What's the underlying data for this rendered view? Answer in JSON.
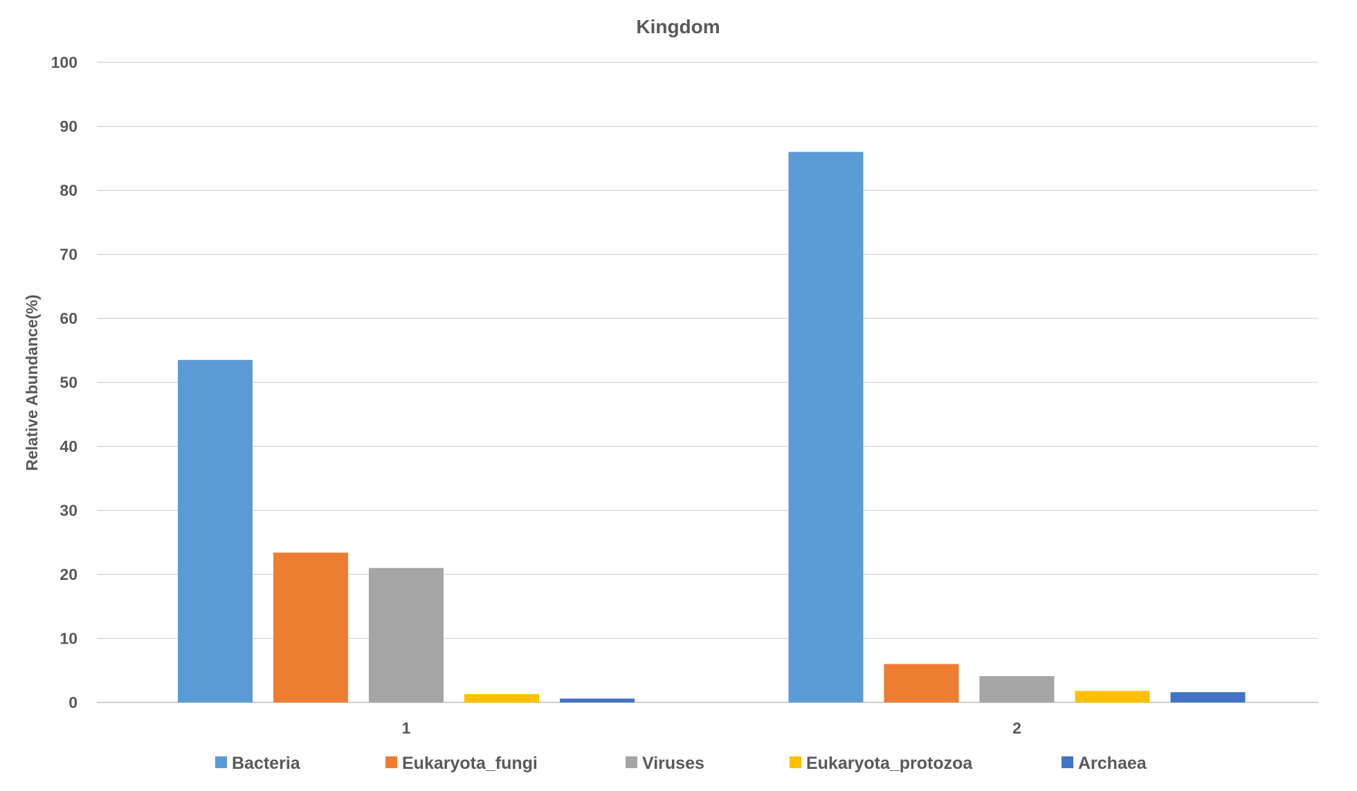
{
  "chart_data": {
    "type": "bar",
    "title": "Kingdom",
    "xlabel": "",
    "ylabel": "Relative Abundance(%)",
    "ylim": [
      0,
      100
    ],
    "yticks": [
      0,
      10,
      20,
      30,
      40,
      50,
      60,
      70,
      80,
      90,
      100
    ],
    "grid": true,
    "legend_position": "bottom",
    "categories": [
      "1",
      "2"
    ],
    "series": [
      {
        "name": "Bacteria",
        "color": "#5B9BD5",
        "values": [
          53.5,
          86.0
        ]
      },
      {
        "name": "Eukaryota_fungi",
        "color": "#ED7D31",
        "values": [
          23.4,
          6.0
        ]
      },
      {
        "name": "Viruses",
        "color": "#A5A5A5",
        "values": [
          21.0,
          4.1
        ]
      },
      {
        "name": "Eukaryota_protozoa",
        "color": "#FFC000",
        "values": [
          1.3,
          1.8
        ]
      },
      {
        "name": "Archaea",
        "color": "#4472C4",
        "values": [
          0.6,
          1.6
        ]
      }
    ]
  }
}
